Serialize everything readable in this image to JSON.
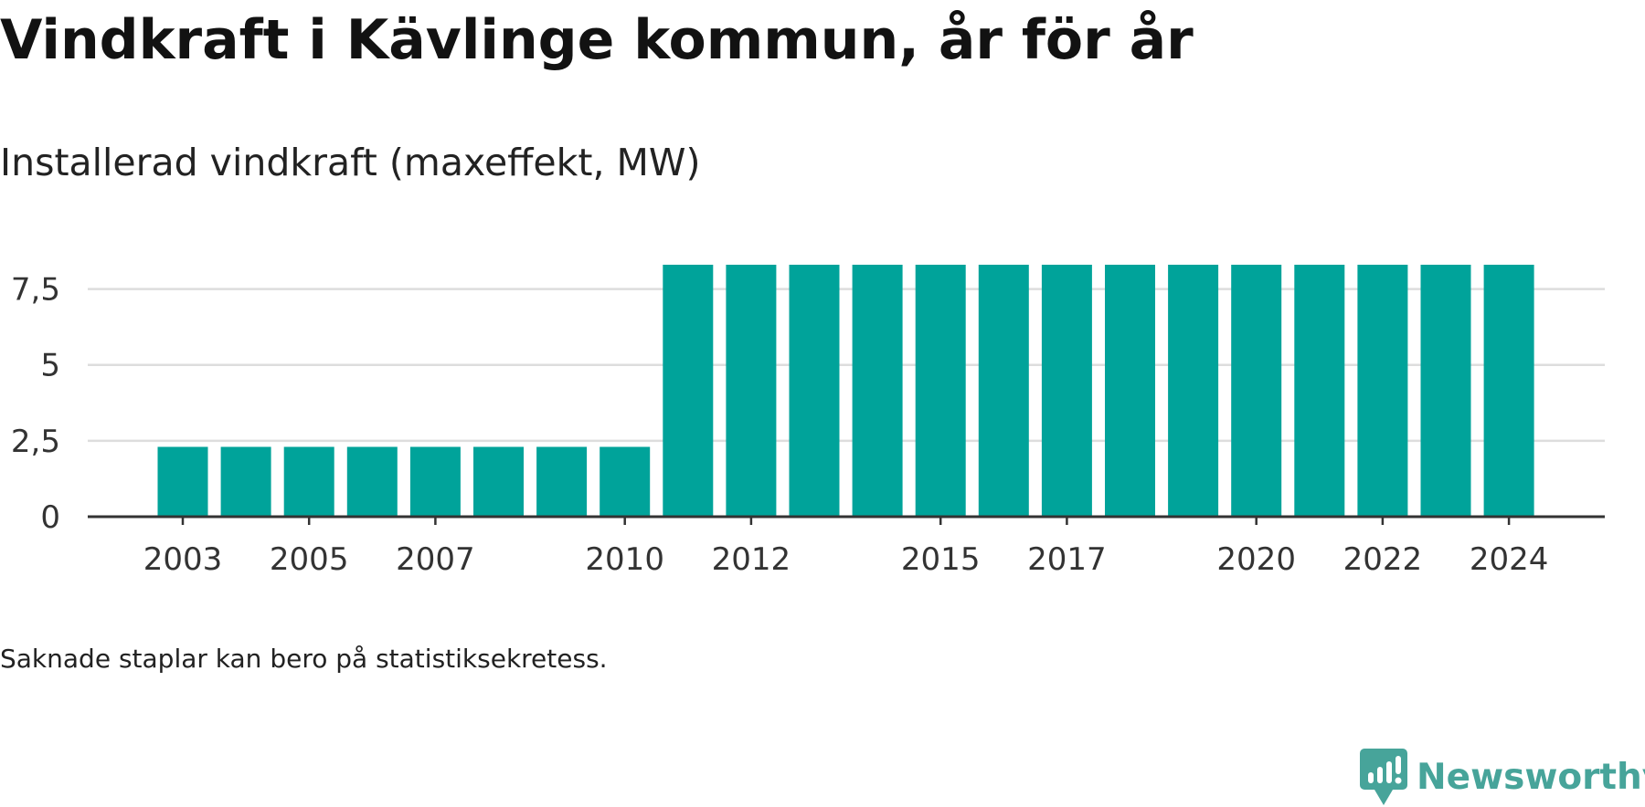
{
  "title": "Vindkraft i Kävlinge kommun, år för år",
  "subtitle": "Installerad vindkraft (maxeffekt, MW)",
  "note": "Saknade staplar kan bero på statistiksekretess.",
  "brand": {
    "name": "Newsworthy",
    "icon": "newsworthy-logo-icon",
    "color": "#47a49a"
  },
  "colors": {
    "bar": "#00a39a",
    "grid": "#dddddd",
    "axis": "#333333",
    "title": "#121212"
  },
  "chart_data": {
    "type": "bar",
    "x": [
      2003,
      2004,
      2005,
      2006,
      2007,
      2008,
      2009,
      2010,
      2011,
      2012,
      2013,
      2014,
      2015,
      2016,
      2017,
      2018,
      2019,
      2020,
      2021,
      2022,
      2023,
      2024
    ],
    "values": [
      2.3,
      2.3,
      2.3,
      2.3,
      2.3,
      2.3,
      2.3,
      2.3,
      8.3,
      8.3,
      8.3,
      8.3,
      8.3,
      8.3,
      8.3,
      8.3,
      8.3,
      8.3,
      8.3,
      8.3,
      8.3,
      8.3
    ],
    "x_tick_labels": [
      "2003",
      "2005",
      "2007",
      "2010",
      "2012",
      "2015",
      "2017",
      "2020",
      "2022",
      "2024"
    ],
    "y_ticks": [
      0,
      2.5,
      5,
      7.5
    ],
    "y_tick_labels": [
      "0",
      "2,5",
      "5",
      "7,5"
    ],
    "ylim": [
      0,
      8.3
    ],
    "title": "Vindkraft i Kävlinge kommun, år för år",
    "subtitle": "Installerad vindkraft (maxeffekt, MW)",
    "xlabel": "",
    "ylabel": "",
    "grid": true,
    "legend": "none"
  }
}
